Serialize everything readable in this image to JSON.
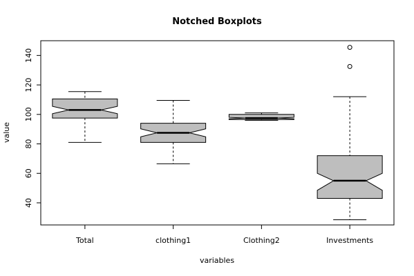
{
  "chart_data": {
    "type": "boxplot",
    "title": "Notched Boxplots",
    "xlabel": "variables",
    "ylabel": "value",
    "ylim": [
      25,
      150
    ],
    "yticks": [
      40,
      60,
      80,
      100,
      120,
      140
    ],
    "categories": [
      "Total",
      "clothing1",
      "Clothing2",
      "Investments"
    ],
    "series": [
      {
        "category": "Total",
        "whisker_low": 81,
        "q1": 97.5,
        "median": 103,
        "q3": 110.5,
        "whisker_high": 115.5,
        "notch_low": 100.5,
        "notch_high": 105.5,
        "outliers": []
      },
      {
        "category": "clothing1",
        "whisker_low": 66.5,
        "q1": 81,
        "median": 87.5,
        "q3": 94,
        "whisker_high": 109.5,
        "notch_low": 84.8,
        "notch_high": 90.2,
        "outliers": []
      },
      {
        "category": "Clothing2",
        "whisker_low": 96,
        "q1": 96.5,
        "median": 97.5,
        "q3": 100,
        "whisker_high": 101,
        "notch_low": 97.0,
        "notch_high": 98.0,
        "outliers": []
      },
      {
        "category": "Investments",
        "whisker_low": 28.5,
        "q1": 43,
        "median": 55,
        "q3": 72,
        "whisker_high": 112,
        "notch_low": 48.5,
        "notch_high": 60,
        "outliers": [
          132.5,
          145.5
        ]
      }
    ],
    "colors": {
      "box_fill": "#bebebe",
      "stroke": "#000000",
      "background": "#ffffff"
    }
  }
}
